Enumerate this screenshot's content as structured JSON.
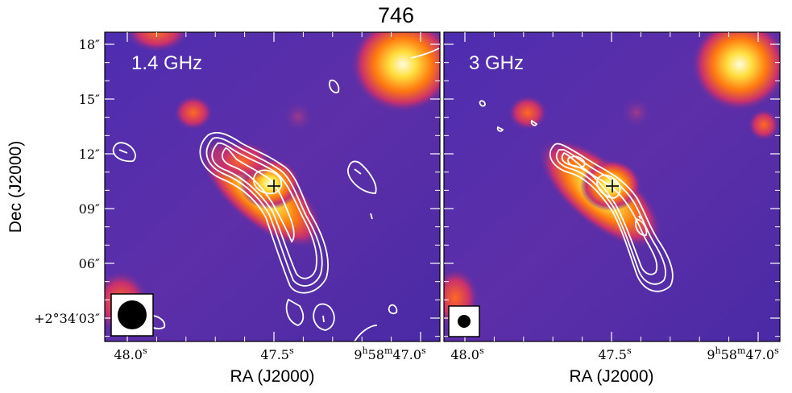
{
  "figure": {
    "title": "746",
    "panels": [
      {
        "label": "1.4 GHz"
      },
      {
        "label": "3 GHz"
      }
    ],
    "y_axis": {
      "label": "Dec (J2000)",
      "ticks": [
        "18″",
        "15″",
        "12″",
        "09″",
        "06″",
        "+2°34′03″"
      ]
    },
    "x_axis": {
      "label": "RA (J2000)",
      "ticks": [
        {
          "main": "48.0",
          "sup": "s",
          "prefix": ""
        },
        {
          "main": "47.5",
          "sup": "s",
          "prefix": ""
        },
        {
          "main": "47.0",
          "sup": "s",
          "prefix": "9h58m"
        }
      ],
      "prefix_parts": {
        "h": "9",
        "hs": "h",
        "m": "58",
        "ms": "m",
        "s": "47.0",
        "ss": "s"
      }
    },
    "colors": {
      "background": "#5a2fb0",
      "contour": "#ffffff",
      "hot": "#fff8c8"
    }
  }
}
